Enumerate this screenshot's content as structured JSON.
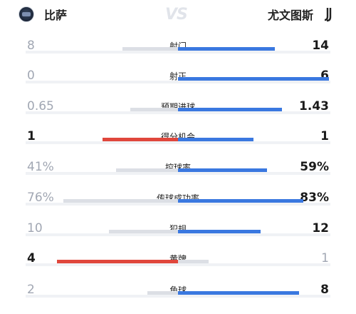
{
  "header": {
    "home_team": "比萨",
    "away_team": "尤文图斯",
    "vs_label": "VS"
  },
  "colors": {
    "away_bar": "#3a78e0",
    "home_highlight_bar": "#e0473c",
    "loser_bar": "#dcdfe5"
  },
  "stats": [
    {
      "label": "射门",
      "home": "8",
      "away": "14"
    },
    {
      "label": "射正",
      "home": "0",
      "away": "6"
    },
    {
      "label": "预期进球",
      "home": "0.65",
      "away": "1.43"
    },
    {
      "label": "得分机会",
      "home": "1",
      "away": "1"
    },
    {
      "label": "控球率",
      "home": "41%",
      "away": "59%"
    },
    {
      "label": "传球成功率",
      "home": "76%",
      "away": "83%"
    },
    {
      "label": "犯规",
      "home": "10",
      "away": "12"
    },
    {
      "label": "黄牌",
      "home": "4",
      "away": "1"
    },
    {
      "label": "角球",
      "home": "2",
      "away": "8"
    }
  ]
}
